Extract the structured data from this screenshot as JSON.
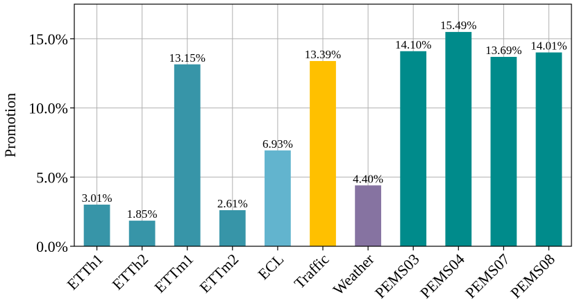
{
  "chart_data": {
    "type": "bar",
    "title": "",
    "xlabel": "",
    "ylabel": "Promotion",
    "ylim": [
      0,
      17.5
    ],
    "yticks": [
      0,
      5,
      10,
      15
    ],
    "ytick_labels": [
      "0.0%",
      "5.0%",
      "10.0%",
      "15.0%"
    ],
    "grid": true,
    "categories": [
      "ETTh1",
      "ETTh2",
      "ETTm1",
      "ETTm2",
      "ECL",
      "Traffic",
      "Weather",
      "PEMS03",
      "PEMS04",
      "PEMS07",
      "PEMS08"
    ],
    "values": [
      3.01,
      1.85,
      13.15,
      2.61,
      6.93,
      13.39,
      4.4,
      14.1,
      15.49,
      13.69,
      14.01
    ],
    "value_labels": [
      "3.01%",
      "1.85%",
      "13.15%",
      "2.61%",
      "6.93%",
      "13.39%",
      "4.40%",
      "14.10%",
      "15.49%",
      "13.69%",
      "14.01%"
    ],
    "bar_colors": [
      "#3795a8",
      "#3795a8",
      "#3795a8",
      "#3795a8",
      "#62b4ce",
      "#ffc000",
      "#8673a1",
      "#008b8b",
      "#008b8b",
      "#008b8b",
      "#008b8b"
    ]
  }
}
